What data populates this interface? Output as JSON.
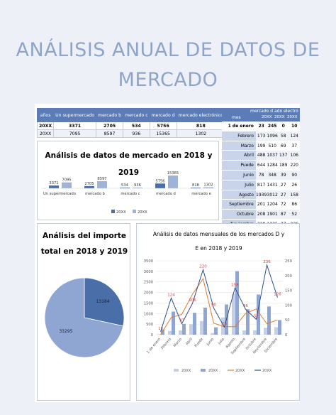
{
  "title_line1": "ANÁLISIS ANUAL DE DATOS DE",
  "title_line2": "MERCADO",
  "top_table": {
    "headers": [
      "años",
      "Un supermercado",
      "mercado b",
      "mercado c",
      "mercado d",
      "mercado electrónico",
      "total"
    ],
    "rows": [
      [
        "20XX",
        "3371",
        "2705",
        "534",
        "5756",
        "818",
        "###"
      ],
      [
        "20XX",
        "7095",
        "8597",
        "936",
        "15365",
        "1302",
        "33295"
      ]
    ]
  },
  "month_table": {
    "header_left": "mes",
    "header_top": "mercado d",
    "header_top2": "ado electró",
    "header_cols": [
      "20XX",
      "20XX",
      "20XX",
      "20XX"
    ],
    "rows": [
      [
        "1 de enero",
        "23",
        "245",
        "0",
        "10"
      ],
      [
        "Febrero",
        "173",
        "1096",
        "58",
        "124"
      ],
      [
        "Marzo",
        "199",
        "510",
        "69",
        "37"
      ],
      [
        "Abril",
        "488",
        "1037",
        "137",
        "106"
      ],
      [
        "Puede",
        "644",
        "1284",
        "189",
        "220"
      ],
      [
        "Junio",
        "78",
        "348",
        "39",
        "90"
      ],
      [
        "Julio",
        "817",
        "1431",
        "27",
        "26"
      ],
      [
        "Agosto",
        "1939",
        "3012",
        "27",
        "158"
      ],
      [
        "Septiembre",
        "201",
        "1204",
        "72",
        "86"
      ],
      [
        "Octubre",
        "208",
        "1901",
        "87",
        "52"
      ],
      [
        "Noviembre",
        "328",
        "1335",
        "37",
        "236"
      ],
      [
        "Diciembre",
        "358",
        "694",
        "50",
        "126"
      ]
    ]
  },
  "chart_data": [
    {
      "type": "bar",
      "title": "Análisis de datos de mercado en 2018 y 2019",
      "categories": [
        "Un supermercado",
        "mercado b",
        "mercado c",
        "mercado d",
        "mercado e"
      ],
      "series": [
        {
          "name": "20XX",
          "values": [
            3371,
            2705,
            534,
            5756,
            818
          ]
        },
        {
          "name": "20XX",
          "values": [
            7095,
            8597,
            936,
            15365,
            1302
          ]
        }
      ],
      "colors": [
        "#4a6fa8",
        "#9fb3d9"
      ]
    },
    {
      "type": "pie",
      "title": "Análisis del importe total en 2018 y 2019",
      "values": [
        13184,
        33295
      ],
      "colors": [
        "#4a6fa8",
        "#8fa6d2"
      ]
    },
    {
      "type": "bar",
      "title": "Análisis de datos mensuales de los mercados D y E en 2018 y 2019",
      "categories": [
        "1 de enero",
        "Febrero",
        "Marzo",
        "Abril",
        "Puede",
        "Junio",
        "Julio",
        "Agosto",
        "Septiembre",
        "Octubre",
        "Noviembre",
        "Diciembre"
      ],
      "series": [
        {
          "name": "20XX",
          "kind": "bar",
          "values": [
            23,
            173,
            199,
            488,
            644,
            78,
            817,
            1939,
            201,
            208,
            328,
            358
          ]
        },
        {
          "name": "20XX",
          "kind": "bar",
          "values": [
            245,
            1096,
            510,
            1037,
            1284,
            348,
            1431,
            3012,
            1204,
            1901,
            1335,
            694
          ]
        },
        {
          "name": "20XX",
          "kind": "line",
          "axis": "right",
          "values": [
            0,
            58,
            69,
            137,
            189,
            39,
            27,
            27,
            72,
            87,
            37,
            50
          ]
        },
        {
          "name": "20XX",
          "kind": "line",
          "axis": "right",
          "values": [
            10,
            124,
            37,
            106,
            220,
            90,
            26,
            158,
            86,
            52,
            236,
            126
          ]
        }
      ],
      "ylim_left": [
        0,
        3500
      ],
      "yticks_left": [
        "3500",
        "3000",
        "2500",
        "2000",
        "1500",
        "1000",
        "500",
        "0"
      ],
      "ylim_right": [
        0,
        250
      ],
      "yticks_right": [
        "250",
        "200",
        "150",
        "100",
        "50",
        "0"
      ],
      "colors": [
        "#c5d0e6",
        "#8fa6d2",
        "#e07b2c",
        "#2d4f8a"
      ],
      "label_color": "#d04040"
    }
  ],
  "chart1_title_line1": "Análisis de datos de mercado en 2018 y",
  "chart1_title_line2": "2019",
  "chart2_title_line1": "Análisis del importe",
  "chart2_title_line2": "total en 2018 y 2019",
  "chart3_title_line1": "Análisis de datos mensuales de los mercados D y",
  "chart3_title_line2": "E en 2018 y 2019",
  "legend_label": "20XX"
}
